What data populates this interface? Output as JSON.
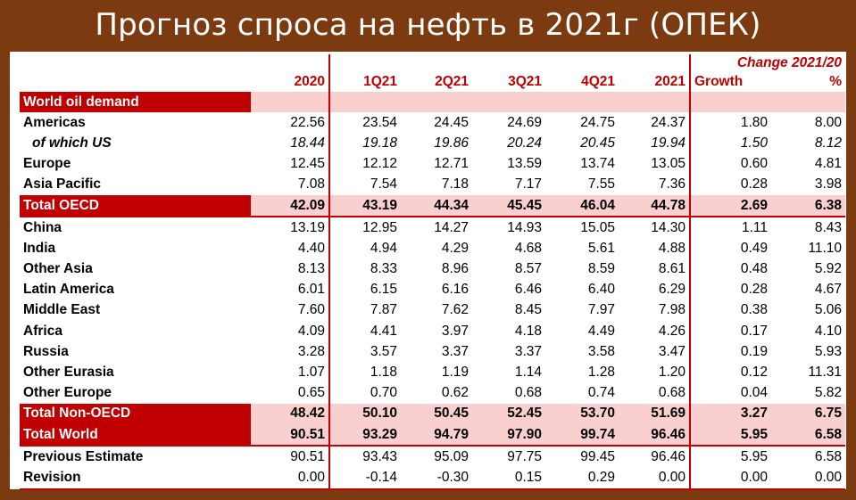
{
  "page_title": "Прогноз спроса на нефть в 2021г (ОПЕК)",
  "chart_data": {
    "type": "table",
    "change_header": "Change 2021/20",
    "columns": [
      "2020",
      "1Q21",
      "2Q21",
      "3Q21",
      "4Q21",
      "2021",
      "Growth",
      "%"
    ],
    "section_label": "World oil demand",
    "rows": [
      {
        "label": "Americas",
        "values": [
          "22.56",
          "23.54",
          "24.45",
          "24.69",
          "24.75",
          "24.37",
          "1.80",
          "8.00"
        ]
      },
      {
        "label": "of which US",
        "values": [
          "18.44",
          "19.18",
          "19.86",
          "20.24",
          "20.45",
          "19.94",
          "1.50",
          "8.12"
        ]
      },
      {
        "label": "Europe",
        "values": [
          "12.45",
          "12.12",
          "12.71",
          "13.59",
          "13.74",
          "13.05",
          "0.60",
          "4.81"
        ]
      },
      {
        "label": "Asia Pacific",
        "values": [
          "7.08",
          "7.54",
          "7.18",
          "7.17",
          "7.55",
          "7.36",
          "0.28",
          "3.98"
        ]
      },
      {
        "label": "Total OECD",
        "values": [
          "42.09",
          "43.19",
          "44.34",
          "45.45",
          "46.04",
          "44.78",
          "2.69",
          "6.38"
        ]
      },
      {
        "label": "China",
        "values": [
          "13.19",
          "12.95",
          "14.27",
          "14.93",
          "15.05",
          "14.30",
          "1.11",
          "8.43"
        ]
      },
      {
        "label": "India",
        "values": [
          "4.40",
          "4.94",
          "4.29",
          "4.68",
          "5.61",
          "4.88",
          "0.49",
          "11.10"
        ]
      },
      {
        "label": "Other Asia",
        "values": [
          "8.13",
          "8.33",
          "8.96",
          "8.57",
          "8.59",
          "8.61",
          "0.48",
          "5.92"
        ]
      },
      {
        "label": "Latin America",
        "values": [
          "6.01",
          "6.15",
          "6.16",
          "6.46",
          "6.40",
          "6.29",
          "0.28",
          "4.67"
        ]
      },
      {
        "label": "Middle East",
        "values": [
          "7.60",
          "7.87",
          "7.62",
          "8.45",
          "7.97",
          "7.98",
          "0.38",
          "5.06"
        ]
      },
      {
        "label": "Africa",
        "values": [
          "4.09",
          "4.41",
          "3.97",
          "4.18",
          "4.49",
          "4.26",
          "0.17",
          "4.10"
        ]
      },
      {
        "label": "Russia",
        "values": [
          "3.28",
          "3.57",
          "3.37",
          "3.37",
          "3.58",
          "3.47",
          "0.19",
          "5.93"
        ]
      },
      {
        "label": "Other Eurasia",
        "values": [
          "1.07",
          "1.18",
          "1.19",
          "1.14",
          "1.28",
          "1.20",
          "0.12",
          "11.31"
        ]
      },
      {
        "label": "Other Europe",
        "values": [
          "0.65",
          "0.70",
          "0.62",
          "0.68",
          "0.74",
          "0.68",
          "0.04",
          "5.82"
        ]
      },
      {
        "label": "Total Non-OECD",
        "values": [
          "48.42",
          "50.10",
          "50.45",
          "52.45",
          "53.70",
          "51.69",
          "3.27",
          "6.75"
        ]
      },
      {
        "label": "Total World",
        "values": [
          "90.51",
          "93.29",
          "94.79",
          "97.90",
          "99.74",
          "96.46",
          "5.95",
          "6.58"
        ]
      },
      {
        "label": "Previous Estimate",
        "values": [
          "90.51",
          "93.43",
          "95.09",
          "97.75",
          "99.45",
          "96.46",
          "5.95",
          "6.58"
        ]
      },
      {
        "label": "Revision",
        "values": [
          "0.00",
          "-0.14",
          "-0.30",
          "0.15",
          "0.29",
          "0.00",
          "0.00",
          "0.00"
        ]
      }
    ]
  }
}
